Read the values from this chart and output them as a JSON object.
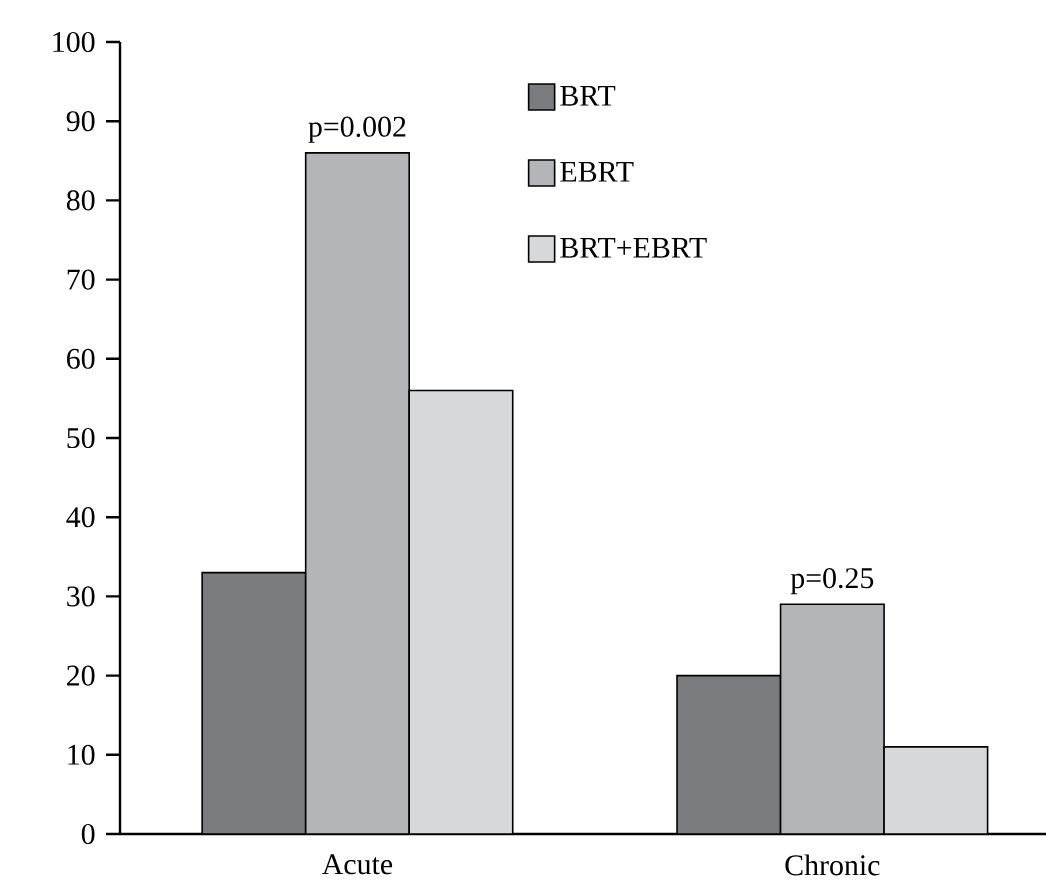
{
  "chart_data": {
    "type": "bar",
    "categories": [
      "Acute",
      "Chronic"
    ],
    "series": [
      {
        "name": "BRT",
        "color": "#7b7c80",
        "values": [
          33,
          20
        ]
      },
      {
        "name": "EBRT",
        "color": "#b4b5b9",
        "values": [
          86,
          29
        ]
      },
      {
        "name": "BRT+EBRT",
        "color": "#d7d8da",
        "values": [
          56,
          11
        ]
      }
    ],
    "ylim": [
      0,
      100
    ],
    "yticks": [
      0,
      10,
      20,
      30,
      40,
      50,
      60,
      70,
      80,
      90,
      100
    ],
    "legend": "top",
    "annotations": [
      {
        "text": "p=0.002",
        "x": "Acute",
        "y": 86
      },
      {
        "text": "p=0.25",
        "x": "Chronic",
        "y": 29
      }
    ]
  }
}
